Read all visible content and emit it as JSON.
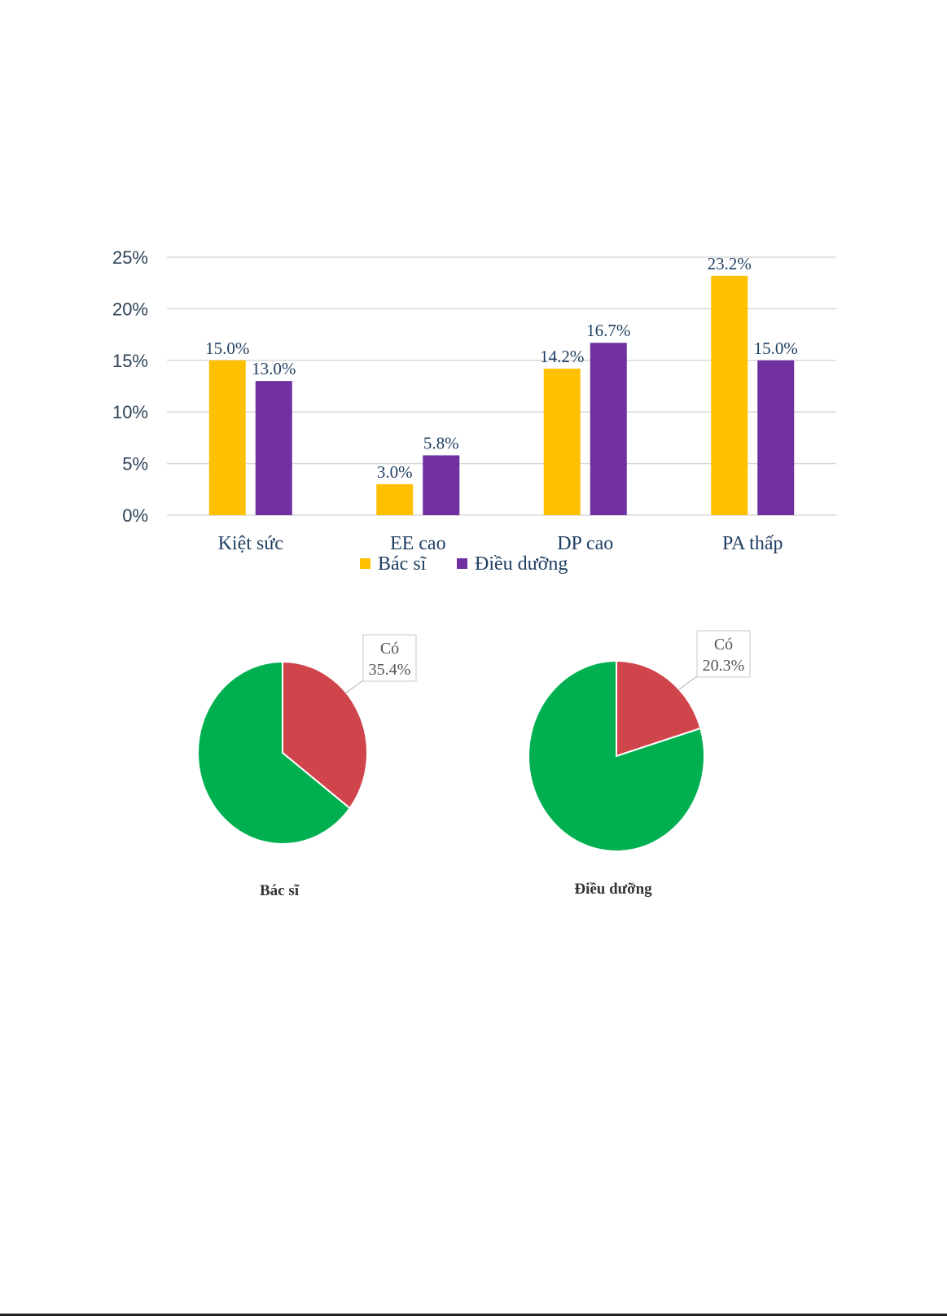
{
  "chart_data": [
    {
      "type": "bar",
      "categories": [
        "Kiệt sức",
        "EE cao",
        "DP cao",
        "PA thấp"
      ],
      "series": [
        {
          "name": "Bác sĩ",
          "values": [
            15.0,
            3.0,
            14.2,
            23.2
          ],
          "labels": [
            "15.0%",
            "3.0%",
            "14.2%",
            "23.2%"
          ],
          "color": "#FFC000"
        },
        {
          "name": "Điều dưỡng",
          "values": [
            13.0,
            5.8,
            16.7,
            15.0
          ],
          "labels": [
            "13.0%",
            "5.8%",
            "16.7%",
            "15.0%"
          ],
          "color": "#7030A0"
        }
      ],
      "yticks": [
        "0%",
        "5%",
        "10%",
        "15%",
        "20%",
        "25%"
      ],
      "ylim": [
        0,
        25
      ],
      "grid": true,
      "legend": "bottom"
    },
    {
      "type": "pie",
      "title": "Bác sĩ",
      "slices": [
        {
          "label": "Có",
          "value": 35.4,
          "value_label": "35.4%",
          "color": "#D0454C"
        },
        {
          "label": "",
          "value": 64.6,
          "color": "#00B050"
        }
      ]
    },
    {
      "type": "pie",
      "title": "Điều dưỡng",
      "slices": [
        {
          "label": "Có",
          "value": 20.3,
          "value_label": "20.3%",
          "color": "#D0454C"
        },
        {
          "label": "",
          "value": 79.7,
          "color": "#00B050"
        }
      ]
    }
  ],
  "colors": {
    "grid": "#d9d9d9",
    "axis_text": "#2f4359",
    "label_text": "#1f3f62"
  }
}
